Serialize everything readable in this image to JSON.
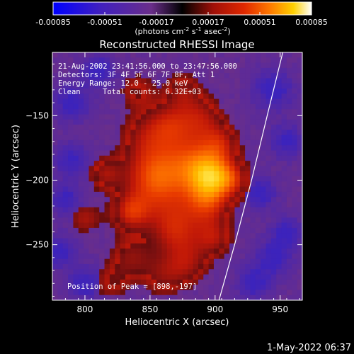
{
  "chart_data": {
    "type": "heatmap",
    "title": "Reconstructed RHESSI Image",
    "xlabel": "Heliocentric X (arcsec)",
    "ylabel": "Heliocentric Y (arcsec)",
    "xlim": [
      775,
      967
    ],
    "ylim": [
      -293,
      -101
    ],
    "x_ticks": [
      800,
      850,
      900,
      950
    ],
    "y_ticks": [
      -150,
      -200,
      -250
    ],
    "colorbar": {
      "range": [
        -0.00085,
        0.00085
      ],
      "tick_labels": [
        "-0.00085",
        "-0.00051",
        "-0.00017",
        "0.00017",
        "0.00051",
        "0.00085"
      ],
      "units_label": "(photons cm",
      "units_exp1": "-2",
      "units_mid": " s",
      "units_exp2": "-1",
      "units_end": " asec",
      "units_exp3": "-2",
      "units_close": ")"
    },
    "annotations": {
      "time_range": "21-Aug-2002 23:41:56.000 to 23:47:56.000",
      "detectors": "Detectors: 3F 4F 5F 6F 7F 8F, Att 1",
      "energy_range": "Energy Range: 12.0 - 25.0 keV",
      "algorithm": "Clean",
      "total_counts": "Total counts: 6.32E+03",
      "peak": "Position of Peak = [898,-197]"
    },
    "peak": [
      898,
      -197
    ],
    "limb_arc": [
      [
        903,
        -293
      ],
      [
        915,
        -250
      ],
      [
        928,
        -200
      ],
      [
        940,
        -150
      ],
      [
        952,
        -101
      ]
    ]
  },
  "footer": {
    "timestamp": "1-May-2022 06:37"
  },
  "colors": {
    "background": "#000000",
    "text": "#ffffff",
    "negative_map": [
      "#0000ff",
      "#3020c0",
      "#502890",
      "#6a2e8a"
    ],
    "positive_map": [
      "#7a1010",
      "#c01808",
      "#e83a00",
      "#ff7a00",
      "#ffc000",
      "#ffff80",
      "#ffffff"
    ]
  }
}
